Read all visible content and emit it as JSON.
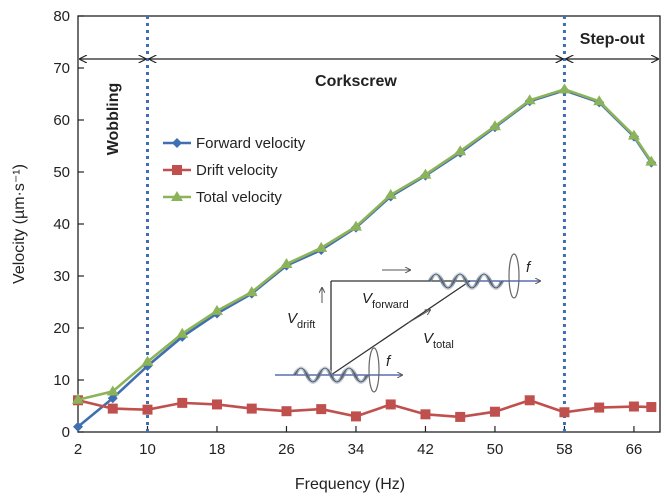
{
  "chart_data": {
    "type": "line",
    "xlabel": "Frequency (Hz)",
    "ylabel": "Velocity (µm·s⁻¹)",
    "xlim": [
      2,
      69
    ],
    "ylim": [
      0,
      80
    ],
    "xticks": [
      2,
      10,
      18,
      26,
      34,
      42,
      50,
      58,
      66
    ],
    "yticks": [
      0,
      10,
      20,
      30,
      40,
      50,
      60,
      70,
      80
    ],
    "legend_position": "upper-left",
    "grid": false,
    "series": [
      {
        "name": "Forward velocity",
        "color": "#3f6fb0",
        "marker": "diamond",
        "x": [
          2,
          6,
          10,
          14,
          18,
          22,
          26,
          30,
          34,
          38,
          42,
          46,
          50,
          54,
          58,
          62,
          66,
          68
        ],
        "y": [
          1,
          6.5,
          12.7,
          18.3,
          22.8,
          26.6,
          32.0,
          35.0,
          39.3,
          45.3,
          49.3,
          53.7,
          58.6,
          63.6,
          65.7,
          63.4,
          56.8,
          51.8
        ]
      },
      {
        "name": "Drift velocity",
        "color": "#c0504d",
        "marker": "square",
        "x": [
          2,
          6,
          10,
          14,
          18,
          22,
          26,
          30,
          34,
          38,
          42,
          46,
          50,
          54,
          58,
          62,
          66,
          68
        ],
        "y": [
          6.1,
          4.5,
          4.3,
          5.6,
          5.3,
          4.5,
          4.0,
          4.4,
          3.0,
          5.3,
          3.4,
          2.9,
          3.9,
          6.1,
          3.8,
          4.7,
          4.9,
          4.8
        ]
      },
      {
        "name": "Total velocity",
        "color": "#8db35a",
        "marker": "triangle",
        "x": [
          2,
          6,
          10,
          14,
          18,
          22,
          26,
          30,
          34,
          38,
          42,
          46,
          50,
          54,
          58,
          62,
          66,
          68
        ],
        "y": [
          6.2,
          7.8,
          13.5,
          18.9,
          23.3,
          26.9,
          32.3,
          35.4,
          39.5,
          45.6,
          49.5,
          54.0,
          58.8,
          63.8,
          65.9,
          63.6,
          57.0,
          52.0
        ]
      }
    ],
    "vlines": [
      10,
      58
    ],
    "regions": [
      {
        "label": "Wobbling",
        "from": 2,
        "to": 10,
        "orientation": "vertical"
      },
      {
        "label": "Corkscrew",
        "from": 10,
        "to": 58,
        "orientation": "horizontal"
      },
      {
        "label": "Step-out",
        "from": 58,
        "to": 69,
        "orientation": "horizontal"
      }
    ],
    "inset": {
      "v_drift": "V",
      "v_drift_sub": "drift",
      "v_forward": "V",
      "v_forward_sub": "forward",
      "v_total": "V",
      "v_total_sub": "total",
      "f_label": "f"
    }
  }
}
